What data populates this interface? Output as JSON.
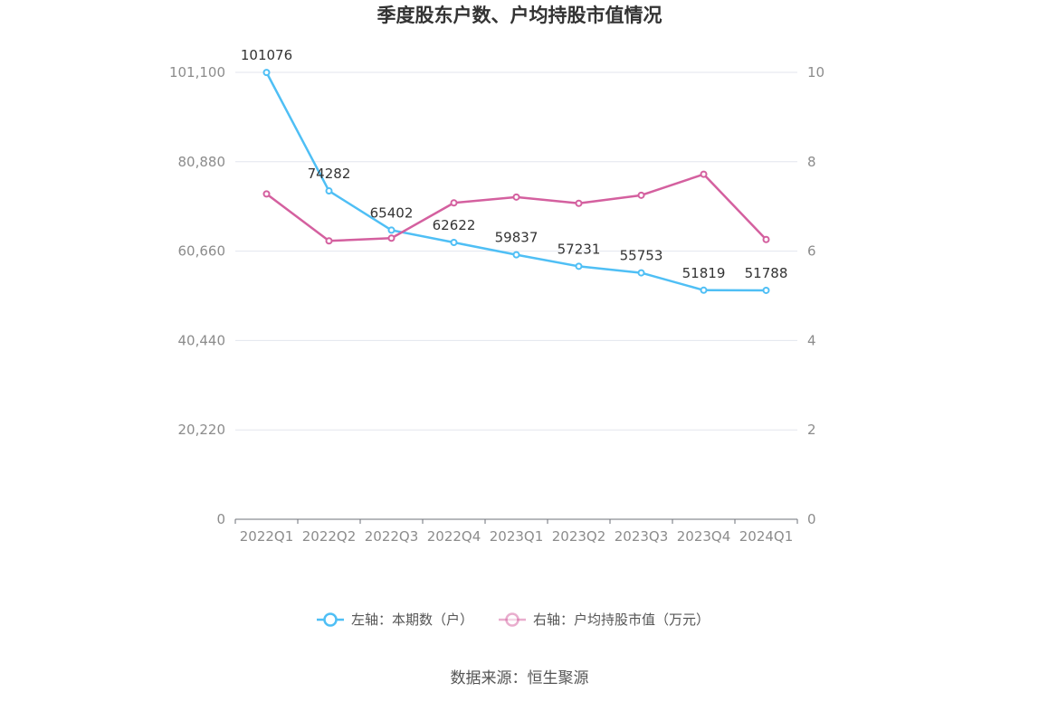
{
  "chart_data": {
    "type": "line",
    "title": "季度股东户数、户均持股市值情况",
    "categories": [
      "2022Q1",
      "2022Q2",
      "2022Q3",
      "2022Q4",
      "2023Q1",
      "2023Q2",
      "2023Q3",
      "2023Q4",
      "2024Q1"
    ],
    "series": [
      {
        "name": "左轴：本期数（户）",
        "axis": "left",
        "color": "#4fbff5",
        "values": [
          101076,
          74282,
          65402,
          62622,
          59837,
          57231,
          55753,
          51819,
          51788
        ],
        "data_labels": [
          "101076",
          "74282",
          "65402",
          "62622",
          "59837",
          "57231",
          "55753",
          "51819",
          "51788"
        ]
      },
      {
        "name": "右轴：户均持股市值（万元）",
        "axis": "right",
        "color": "#d4609f",
        "values": [
          7.28,
          6.23,
          6.29,
          7.08,
          7.21,
          7.07,
          7.25,
          7.72,
          6.26
        ]
      }
    ],
    "y_left": {
      "ylim": [
        0,
        101100
      ],
      "ticks": [
        0,
        20220,
        40440,
        60660,
        80880,
        101100
      ],
      "tick_labels": [
        "0",
        "20,220",
        "40,440",
        "60,660",
        "80,880",
        "101,100"
      ]
    },
    "y_right": {
      "ylim": [
        0,
        10
      ],
      "ticks": [
        0,
        2,
        4,
        6,
        8,
        10
      ],
      "tick_labels": [
        "0",
        "2",
        "4",
        "6",
        "8",
        "10"
      ]
    },
    "grid": true,
    "legend_position": "bottom"
  },
  "source": "数据来源：恒生聚源"
}
